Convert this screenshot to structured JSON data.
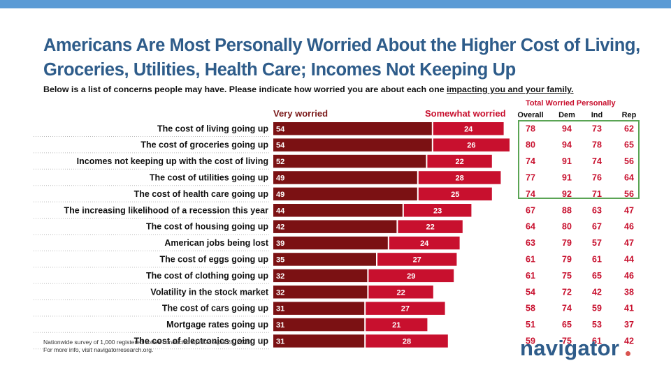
{
  "title": "Americans Are Most Personally Worried About the Higher Cost of Living, Groceries, Utilities, Health Care; Incomes Not Keeping Up",
  "subtitle_prefix": "Below is a list of concerns people may have. Please indicate how worried you are about each one ",
  "subtitle_underlined": "impacting you and your family.",
  "legend_very": "Very worried",
  "legend_somewhat": "Somewhat worried",
  "total_worried_title": "Total Worried Personally",
  "table_headers": [
    "Overall",
    "Dem",
    "Ind",
    "Rep"
  ],
  "footnote_1": "Nationwide survey of 1,000 registered voters conducted April 24-April 28, 2025.",
  "footnote_2": "For more info, visit navigatorresearch.org.",
  "brand": "navigator",
  "colors": {
    "very": "#7b1113",
    "somewhat": "#c8102e",
    "title": "#2e5c8a",
    "highlight_box": "#5aa454",
    "topbar": "#5b9bd5"
  },
  "chart_data": {
    "type": "bar",
    "orientation": "horizontal",
    "stacked": true,
    "categories": [
      "The cost of living going up",
      "The cost of groceries going up",
      "Incomes not keeping up with the cost of living",
      "The cost of utilities going up",
      "The cost of health care going up",
      "The increasing likelihood of a recession this year",
      "The cost of housing going up",
      "American jobs being lost",
      "The cost of eggs going up",
      "The cost of clothing going up",
      "Volatility in the stock market",
      "The cost of cars going up",
      "Mortgage rates going up",
      "The cost of electronics going up"
    ],
    "series": [
      {
        "name": "Very worried",
        "values": [
          54,
          54,
          52,
          49,
          49,
          44,
          42,
          39,
          35,
          32,
          32,
          31,
          31,
          31
        ]
      },
      {
        "name": "Somewhat worried",
        "values": [
          24,
          26,
          22,
          28,
          25,
          23,
          22,
          24,
          27,
          29,
          22,
          27,
          21,
          28
        ]
      }
    ],
    "table": {
      "columns": [
        "Overall",
        "Dem",
        "Ind",
        "Rep"
      ],
      "rows": [
        [
          78,
          94,
          73,
          62
        ],
        [
          80,
          94,
          78,
          65
        ],
        [
          74,
          91,
          74,
          56
        ],
        [
          77,
          91,
          76,
          64
        ],
        [
          74,
          92,
          71,
          56
        ],
        [
          67,
          88,
          63,
          47
        ],
        [
          64,
          80,
          67,
          46
        ],
        [
          63,
          79,
          57,
          47
        ],
        [
          61,
          79,
          61,
          44
        ],
        [
          61,
          75,
          65,
          46
        ],
        [
          54,
          72,
          42,
          38
        ],
        [
          58,
          74,
          59,
          41
        ],
        [
          51,
          65,
          53,
          37
        ],
        [
          59,
          75,
          61,
          42
        ]
      ]
    },
    "highlighted_rows": 5
  }
}
